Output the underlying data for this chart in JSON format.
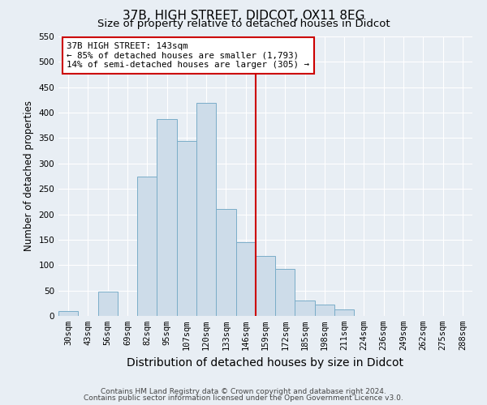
{
  "title": "37B, HIGH STREET, DIDCOT, OX11 8EG",
  "subtitle": "Size of property relative to detached houses in Didcot",
  "xlabel": "Distribution of detached houses by size in Didcot",
  "ylabel": "Number of detached properties",
  "bar_labels": [
    "30sqm",
    "43sqm",
    "56sqm",
    "69sqm",
    "82sqm",
    "95sqm",
    "107sqm",
    "120sqm",
    "133sqm",
    "146sqm",
    "159sqm",
    "172sqm",
    "185sqm",
    "198sqm",
    "211sqm",
    "224sqm",
    "236sqm",
    "249sqm",
    "262sqm",
    "275sqm",
    "288sqm"
  ],
  "bar_values": [
    10,
    0,
    48,
    0,
    275,
    388,
    345,
    420,
    210,
    145,
    118,
    92,
    31,
    22,
    13,
    0,
    0,
    0,
    0,
    0,
    0
  ],
  "bar_color": "#cddce9",
  "bar_edge_color": "#7aadc8",
  "vline_x": 9.5,
  "vline_color": "#cc0000",
  "annotation_text": "37B HIGH STREET: 143sqm\n← 85% of detached houses are smaller (1,793)\n14% of semi-detached houses are larger (305) →",
  "annotation_box_color": "#cc0000",
  "annotation_bg": "#ffffff",
  "ylim": [
    0,
    550
  ],
  "yticks": [
    0,
    50,
    100,
    150,
    200,
    250,
    300,
    350,
    400,
    450,
    500,
    550
  ],
  "footer1": "Contains HM Land Registry data © Crown copyright and database right 2024.",
  "footer2": "Contains public sector information licensed under the Open Government Licence v3.0.",
  "bg_color": "#e8eef4",
  "grid_color": "#ffffff",
  "title_fontsize": 11,
  "subtitle_fontsize": 9.5,
  "xlabel_fontsize": 10,
  "ylabel_fontsize": 8.5,
  "tick_fontsize": 7.5,
  "footer_fontsize": 6.5
}
